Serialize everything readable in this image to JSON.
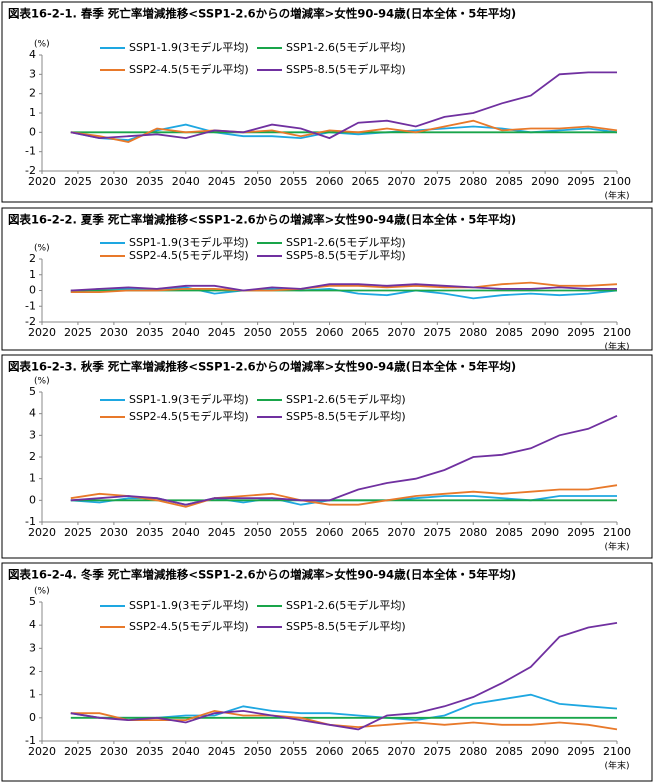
{
  "chart_data": [
    {
      "type": "line",
      "title": "図表16-2-1. 春季 死亡率増減推移<SSP1-2.6からの増減率>女性90-94歳(日本全体・5年平均)",
      "y_unit": "(%)",
      "x_unit": "(年末)",
      "x": [
        2024,
        2028,
        2032,
        2036,
        2040,
        2044,
        2048,
        2052,
        2056,
        2060,
        2064,
        2068,
        2072,
        2076,
        2080,
        2084,
        2088,
        2092,
        2096,
        2100
      ],
      "xlim": [
        2020,
        2100
      ],
      "xticks": [
        2020,
        2025,
        2030,
        2035,
        2040,
        2045,
        2050,
        2055,
        2060,
        2065,
        2070,
        2075,
        2080,
        2085,
        2090,
        2095,
        2100
      ],
      "ylim": [
        -2,
        4
      ],
      "yticks": [
        -2,
        -1,
        0,
        1,
        2,
        3,
        4
      ],
      "grid": false,
      "series": [
        {
          "name": "SSP1-1.9(3モデル平均)",
          "color": "#1ea7e1",
          "values": [
            0,
            -0.3,
            -0.4,
            0.1,
            0.4,
            0,
            -0.2,
            -0.2,
            -0.3,
            0,
            -0.1,
            0,
            0.1,
            0.2,
            0.3,
            0.2,
            0,
            0.1,
            0.2,
            0
          ]
        },
        {
          "name": "SSP1-2.6(5モデル平均)",
          "color": "#19a54a",
          "values": [
            0,
            0,
            0,
            0,
            0,
            0,
            0,
            0,
            0,
            0,
            0,
            0,
            0,
            0,
            0,
            0,
            0,
            0,
            0,
            0
          ]
        },
        {
          "name": "SSP2-4.5(5モデル平均)",
          "color": "#e8792a",
          "values": [
            0,
            -0.2,
            -0.5,
            0.2,
            0,
            0.1,
            0,
            0.1,
            -0.2,
            0.1,
            0,
            0.2,
            0,
            0.3,
            0.6,
            0.1,
            0.2,
            0.2,
            0.3,
            0.1
          ]
        },
        {
          "name": "SSP5-8.5(5モデル平均)",
          "color": "#7030a0",
          "values": [
            0,
            -0.3,
            -0.2,
            -0.1,
            -0.3,
            0.1,
            0,
            0.4,
            0.2,
            -0.3,
            0.5,
            0.6,
            0.3,
            0.8,
            1.0,
            1.5,
            1.9,
            3.0,
            3.1,
            3.1
          ]
        }
      ]
    },
    {
      "type": "line",
      "title": "図表16-2-2. 夏季 死亡率増減推移<SSP1-2.6からの増減率>女性90-94歳(日本全体・5年平均)",
      "y_unit": "(%)",
      "x_unit": "(年末)",
      "x": [
        2024,
        2028,
        2032,
        2036,
        2040,
        2044,
        2048,
        2052,
        2056,
        2060,
        2064,
        2068,
        2072,
        2076,
        2080,
        2084,
        2088,
        2092,
        2096,
        2100
      ],
      "xlim": [
        2020,
        2100
      ],
      "xticks": [
        2020,
        2025,
        2030,
        2035,
        2040,
        2045,
        2050,
        2055,
        2060,
        2065,
        2070,
        2075,
        2080,
        2085,
        2090,
        2095,
        2100
      ],
      "ylim": [
        -2,
        2
      ],
      "yticks": [
        -2,
        -1,
        0,
        1,
        2
      ],
      "grid": false,
      "series": [
        {
          "name": "SSP1-1.9(3モデル平均)",
          "color": "#1ea7e1",
          "values": [
            -0.1,
            0.1,
            0.1,
            0.1,
            0.2,
            -0.2,
            0,
            0.1,
            0,
            0.1,
            -0.2,
            -0.3,
            0,
            -0.2,
            -0.5,
            -0.3,
            -0.2,
            -0.3,
            -0.2,
            0
          ]
        },
        {
          "name": "SSP1-2.6(5モデル平均)",
          "color": "#19a54a",
          "values": [
            0,
            0,
            0,
            0,
            0,
            0,
            0,
            0,
            0,
            0,
            0,
            0,
            0,
            0,
            0,
            0,
            0,
            0,
            0,
            0
          ]
        },
        {
          "name": "SSP2-4.5(5モデル平均)",
          "color": "#e8792a",
          "values": [
            -0.1,
            -0.1,
            0,
            0,
            0.1,
            0.1,
            0,
            0,
            0.1,
            0.3,
            0.3,
            0.2,
            0.3,
            0.2,
            0.2,
            0.4,
            0.5,
            0.3,
            0.3,
            0.4
          ]
        },
        {
          "name": "SSP5-8.5(5モデル平均)",
          "color": "#7030a0",
          "values": [
            0,
            0.1,
            0.2,
            0.1,
            0.3,
            0.3,
            0,
            0.2,
            0.1,
            0.4,
            0.4,
            0.3,
            0.4,
            0.3,
            0.2,
            0.1,
            0.1,
            0.2,
            0.1,
            0.1
          ]
        }
      ]
    },
    {
      "type": "line",
      "title": "図表16-2-3. 秋季 死亡率増減推移<SSP1-2.6からの増減率>女性90-94歳(日本全体・5年平均)",
      "y_unit": "(%)",
      "x_unit": "(年末)",
      "x": [
        2024,
        2028,
        2032,
        2036,
        2040,
        2044,
        2048,
        2052,
        2056,
        2060,
        2064,
        2068,
        2072,
        2076,
        2080,
        2084,
        2088,
        2092,
        2096,
        2100
      ],
      "xlim": [
        2020,
        2100
      ],
      "xticks": [
        2020,
        2025,
        2030,
        2035,
        2040,
        2045,
        2050,
        2055,
        2060,
        2065,
        2070,
        2075,
        2080,
        2085,
        2090,
        2095,
        2100
      ],
      "ylim": [
        -1,
        5
      ],
      "yticks": [
        -1,
        0,
        1,
        2,
        3,
        4,
        5
      ],
      "grid": false,
      "series": [
        {
          "name": "SSP1-1.9(3モデル平均)",
          "color": "#1ea7e1",
          "values": [
            0,
            -0.1,
            0.1,
            0.1,
            -0.2,
            0.1,
            -0.1,
            0.1,
            -0.2,
            0,
            0,
            0,
            0.1,
            0.2,
            0.2,
            0.1,
            0,
            0.2,
            0.2,
            0.2
          ]
        },
        {
          "name": "SSP1-2.6(5モデル平均)",
          "color": "#19a54a",
          "values": [
            0,
            0,
            0,
            0,
            0,
            0,
            0,
            0,
            0,
            0,
            0,
            0,
            0,
            0,
            0,
            0,
            0,
            0,
            0,
            0
          ]
        },
        {
          "name": "SSP2-4.5(5モデル平均)",
          "color": "#e8792a",
          "values": [
            0.1,
            0.3,
            0.2,
            0,
            -0.3,
            0.1,
            0.2,
            0.3,
            0,
            -0.2,
            -0.2,
            0,
            0.2,
            0.3,
            0.4,
            0.3,
            0.4,
            0.5,
            0.5,
            0.7
          ]
        },
        {
          "name": "SSP5-8.5(5モデル平均)",
          "color": "#7030a0",
          "values": [
            0,
            0.1,
            0.2,
            0.1,
            -0.2,
            0.1,
            0.1,
            0.1,
            0,
            0,
            0.5,
            0.8,
            1.0,
            1.4,
            2.0,
            2.1,
            2.4,
            3.0,
            3.3,
            3.9
          ]
        }
      ]
    },
    {
      "type": "line",
      "title": "図表16-2-4. 冬季 死亡率増減推移<SSP1-2.6からの増減率>女性90-94歳(日本全体・5年平均)",
      "y_unit": "(%)",
      "x_unit": "(年末)",
      "x": [
        2024,
        2028,
        2032,
        2036,
        2040,
        2044,
        2048,
        2052,
        2056,
        2060,
        2064,
        2068,
        2072,
        2076,
        2080,
        2084,
        2088,
        2092,
        2096,
        2100
      ],
      "xlim": [
        2020,
        2100
      ],
      "xticks": [
        2020,
        2025,
        2030,
        2035,
        2040,
        2045,
        2050,
        2055,
        2060,
        2065,
        2070,
        2075,
        2080,
        2085,
        2090,
        2095,
        2100
      ],
      "ylim": [
        -1,
        5
      ],
      "yticks": [
        -1,
        0,
        1,
        2,
        3,
        4,
        5
      ],
      "grid": false,
      "series": [
        {
          "name": "SSP1-1.9(3モデル平均)",
          "color": "#1ea7e1",
          "values": [
            0.2,
            0,
            0,
            0,
            0.1,
            0.1,
            0.5,
            0.3,
            0.2,
            0.2,
            0.1,
            0,
            -0.1,
            0.1,
            0.6,
            0.8,
            1.0,
            0.6,
            0.5,
            0.4
          ]
        },
        {
          "name": "SSP1-2.6(5モデル平均)",
          "color": "#19a54a",
          "values": [
            0,
            0,
            0,
            0,
            0,
            0,
            0,
            0,
            0,
            0,
            0,
            0,
            0,
            0,
            0,
            0,
            0,
            0,
            0,
            0
          ]
        },
        {
          "name": "SSP2-4.5(5モデル平均)",
          "color": "#e8792a",
          "values": [
            0.2,
            0.2,
            -0.1,
            -0.1,
            -0.1,
            0.3,
            0.1,
            0.1,
            0,
            -0.3,
            -0.4,
            -0.3,
            -0.2,
            -0.3,
            -0.2,
            -0.3,
            -0.3,
            -0.2,
            -0.3,
            -0.5
          ]
        },
        {
          "name": "SSP5-8.5(5モデル平均)",
          "color": "#7030a0",
          "values": [
            0.2,
            0,
            -0.1,
            0,
            -0.2,
            0.2,
            0.3,
            0.1,
            -0.1,
            -0.3,
            -0.5,
            0.1,
            0.2,
            0.5,
            0.9,
            1.5,
            2.2,
            3.5,
            3.9,
            4.1
          ]
        }
      ]
    }
  ]
}
